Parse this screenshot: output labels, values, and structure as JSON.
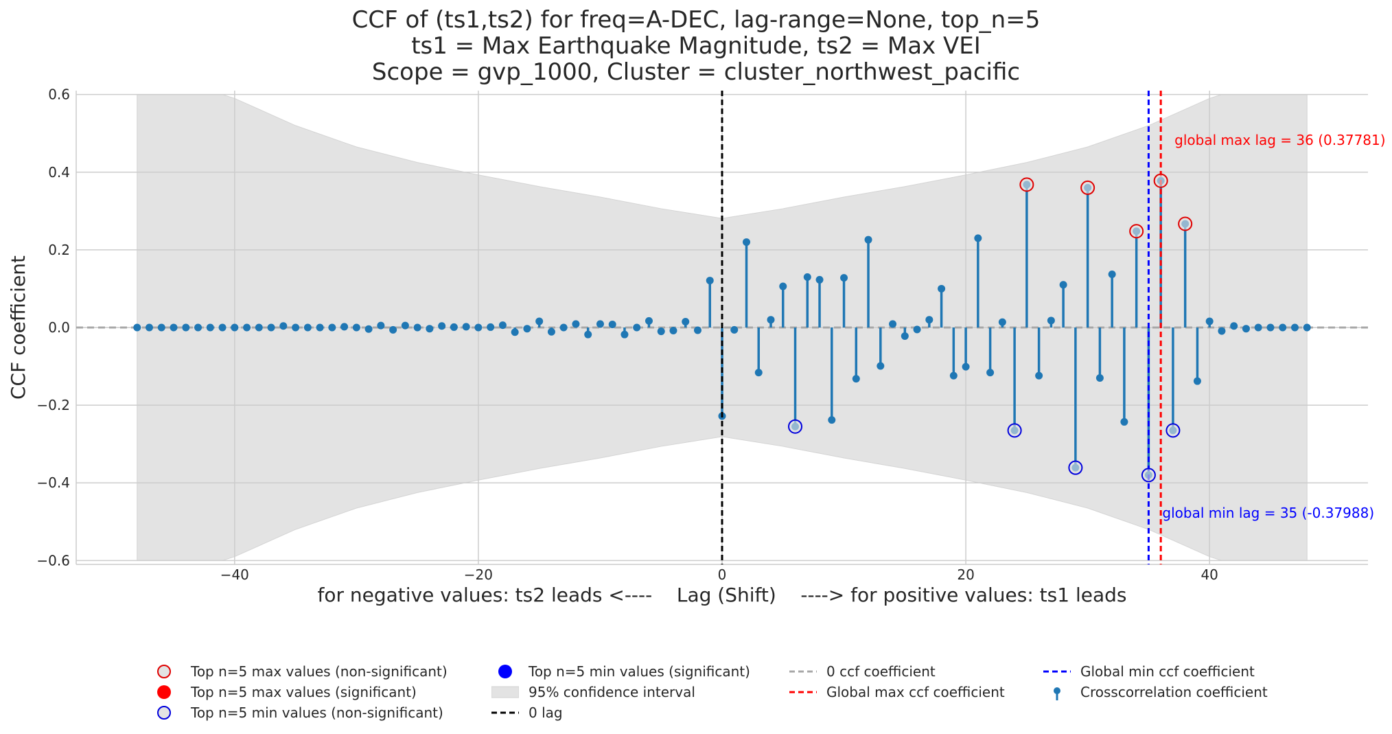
{
  "title_lines": [
    "CCF of (ts1,ts2) for freq=A-DEC, lag-range=None, top_n=5",
    "ts1 = Max Earthquake Magnitude, ts2 = Max VEI",
    "Scope = gvp_1000, Cluster = cluster_northwest_pacific"
  ],
  "colors": {
    "stem": "#1f77b4",
    "max_marker": "#e00000",
    "min_marker": "#0000dd",
    "confidence_fill": "#e3e3e3",
    "zero_line": "#a8a8a8",
    "zero_lag_line": "#000000"
  },
  "chart_data": {
    "type": "stem",
    "xlabel": "for negative values: ts2 leads <----    Lag (Shift)    ----> for positive values: ts1 leads",
    "ylabel": "CCF coefficient",
    "xlim": [
      -53,
      53
    ],
    "ylim": [
      -0.61,
      0.61
    ],
    "xticks": [
      -40,
      -20,
      0,
      20,
      40
    ],
    "xtick_labels": [
      "−40",
      "−20",
      "0",
      "20",
      "40"
    ],
    "yticks": [
      -0.6,
      -0.4,
      -0.2,
      0.0,
      0.2,
      0.4,
      0.6
    ],
    "ytick_labels": [
      "−0.6",
      "−0.4",
      "−0.2",
      "0.0",
      "0.2",
      "0.4",
      "0.6"
    ],
    "grid": true,
    "lags": [
      -48,
      -47,
      -46,
      -45,
      -44,
      -43,
      -42,
      -41,
      -40,
      -39,
      -38,
      -37,
      -36,
      -35,
      -34,
      -33,
      -32,
      -31,
      -30,
      -29,
      -28,
      -27,
      -26,
      -25,
      -24,
      -23,
      -22,
      -21,
      -20,
      -19,
      -18,
      -17,
      -16,
      -15,
      -14,
      -13,
      -12,
      -11,
      -10,
      -9,
      -8,
      -7,
      -6,
      -5,
      -4,
      -3,
      -2,
      -1,
      0,
      1,
      2,
      3,
      4,
      5,
      6,
      7,
      8,
      9,
      10,
      11,
      12,
      13,
      14,
      15,
      16,
      17,
      18,
      19,
      20,
      21,
      22,
      23,
      24,
      25,
      26,
      27,
      28,
      29,
      30,
      31,
      32,
      33,
      34,
      35,
      36,
      37,
      38,
      39,
      40,
      41,
      42,
      43,
      44,
      45,
      46,
      47,
      48
    ],
    "values": [
      0.0,
      0.0,
      0.0,
      0.0,
      0.0,
      0.0,
      0.0,
      0.0,
      0.0,
      0.0,
      0.0,
      0.0,
      0.004,
      0.0,
      0.0,
      0.0,
      0.0,
      0.002,
      0.0,
      -0.004,
      0.005,
      -0.006,
      0.005,
      0.0,
      -0.003,
      0.004,
      0.001,
      0.002,
      0.0,
      0.001,
      0.006,
      -0.012,
      -0.003,
      0.016,
      -0.011,
      0.0,
      0.009,
      -0.018,
      0.009,
      0.008,
      -0.018,
      0.0,
      0.017,
      -0.01,
      -0.008,
      0.015,
      -0.007,
      0.121,
      -0.228,
      -0.006,
      0.22,
      -0.116,
      0.02,
      0.106,
      -0.255,
      0.13,
      0.123,
      -0.238,
      0.128,
      -0.132,
      0.226,
      -0.099,
      0.009,
      -0.022,
      -0.005,
      0.02,
      0.1,
      -0.124,
      -0.101,
      0.23,
      -0.116,
      0.014,
      -0.265,
      0.368,
      -0.124,
      0.018,
      0.11,
      -0.361,
      0.36,
      -0.13,
      0.137,
      -0.243,
      0.248,
      -0.38,
      0.378,
      -0.265,
      0.267,
      -0.138,
      0.016,
      -0.009,
      0.004,
      -0.003,
      0.0,
      0.0,
      0.0,
      0.0,
      0.0
    ],
    "confidence_interval_95": {
      "lags": [
        -48,
        -41,
        -40,
        -35,
        -30,
        -25,
        -20,
        -15,
        -10,
        -5,
        0,
        5,
        10,
        15,
        20,
        25,
        30,
        35,
        40,
        41,
        48
      ],
      "upper": [
        0.6,
        0.6,
        0.59,
        0.52,
        0.465,
        0.425,
        0.393,
        0.363,
        0.336,
        0.306,
        0.281,
        0.306,
        0.336,
        0.363,
        0.393,
        0.425,
        0.465,
        0.52,
        0.59,
        0.6,
        0.6
      ]
    },
    "top_n_max": {
      "lags": [
        25,
        30,
        34,
        36,
        38
      ],
      "values": [
        0.368,
        0.36,
        0.248,
        0.378,
        0.267
      ],
      "significant": false
    },
    "top_n_min": {
      "lags": [
        6,
        24,
        29,
        35,
        37
      ],
      "values": [
        -0.255,
        -0.265,
        -0.361,
        -0.38,
        -0.265
      ],
      "significant": false
    },
    "global_max_lag": 36,
    "global_min_lag": 35,
    "annotations": {
      "max": "global max lag = 36 (0.37781)",
      "min": "global min lag = 35 (-0.37988)"
    }
  },
  "legend": [
    {
      "marker": "circle-open-red",
      "label": "Top n=5 max values (non-significant)"
    },
    {
      "marker": "circle-filled-red",
      "label": "Top n=5 max values (significant)"
    },
    {
      "marker": "circle-open-blue",
      "label": "Top n=5 min values (non-significant)"
    },
    {
      "marker": "circle-filled-blue",
      "label": "Top n=5 min values (significant)"
    },
    {
      "marker": "grey-patch",
      "label": "95% confidence interval"
    },
    {
      "marker": "black-dash",
      "label": "0 lag"
    },
    {
      "marker": "grey-dash",
      "label": "0 ccf coefficient"
    },
    {
      "marker": "red-dash",
      "label": "Global max ccf coefficient"
    },
    {
      "marker": "blue-dash",
      "label": "Global min ccf coefficient"
    },
    {
      "marker": "stem-icon",
      "label": "Crosscorrelation coefficient"
    }
  ]
}
